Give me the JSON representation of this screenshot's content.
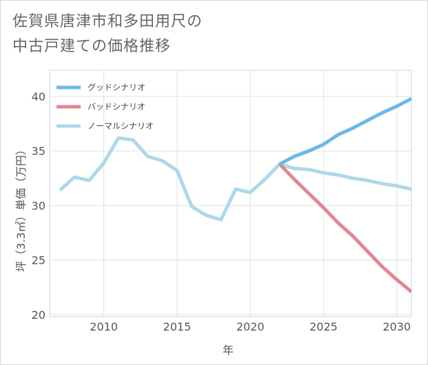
{
  "title_lines": [
    "佐賀県唐津市和多田用尺の",
    "中古戸建ての価格推移"
  ],
  "chart_data": {
    "type": "line",
    "xlabel": "年",
    "ylabel": "坪（3.3㎡）単価（万円）",
    "xlim": [
      2006.3,
      2031
    ],
    "ylim": [
      19.8,
      42.4
    ],
    "xticks": [
      2010,
      2015,
      2020,
      2025,
      2030
    ],
    "yticks": [
      20,
      25,
      30,
      35,
      40
    ],
    "grid": true,
    "legend_position": "top-left",
    "series": [
      {
        "name": "グッドシナリオ",
        "color": "#6bb8ea",
        "x": [
          2022,
          2023,
          2024,
          2025,
          2026,
          2027,
          2028,
          2029,
          2030,
          2031
        ],
        "y": [
          33.8,
          34.5,
          35.0,
          35.6,
          36.5,
          37.1,
          37.8,
          38.5,
          39.1,
          39.8
        ]
      },
      {
        "name": "バッドシナリオ",
        "color": "#e0878f",
        "x": [
          2022,
          2023,
          2024,
          2025,
          2026,
          2027,
          2028,
          2029,
          2030,
          2031
        ],
        "y": [
          33.8,
          32.4,
          31.1,
          29.8,
          28.4,
          27.2,
          25.8,
          24.4,
          23.2,
          22.1
        ]
      },
      {
        "name": "ノーマルシナリオ",
        "color": "#add8ea",
        "x": [
          2007,
          2008,
          2009,
          2010,
          2011,
          2012,
          2013,
          2014,
          2015,
          2016,
          2017,
          2018,
          2019,
          2020,
          2021,
          2022,
          2023,
          2024,
          2025,
          2026,
          2027,
          2028,
          2029,
          2030,
          2031
        ],
        "y": [
          31.4,
          32.6,
          32.3,
          33.9,
          36.2,
          36.0,
          34.5,
          34.1,
          33.2,
          29.9,
          29.1,
          28.7,
          31.5,
          31.2,
          32.4,
          33.8,
          33.4,
          33.3,
          33.0,
          32.8,
          32.5,
          32.3,
          32.0,
          31.8,
          31.5
        ]
      }
    ]
  }
}
